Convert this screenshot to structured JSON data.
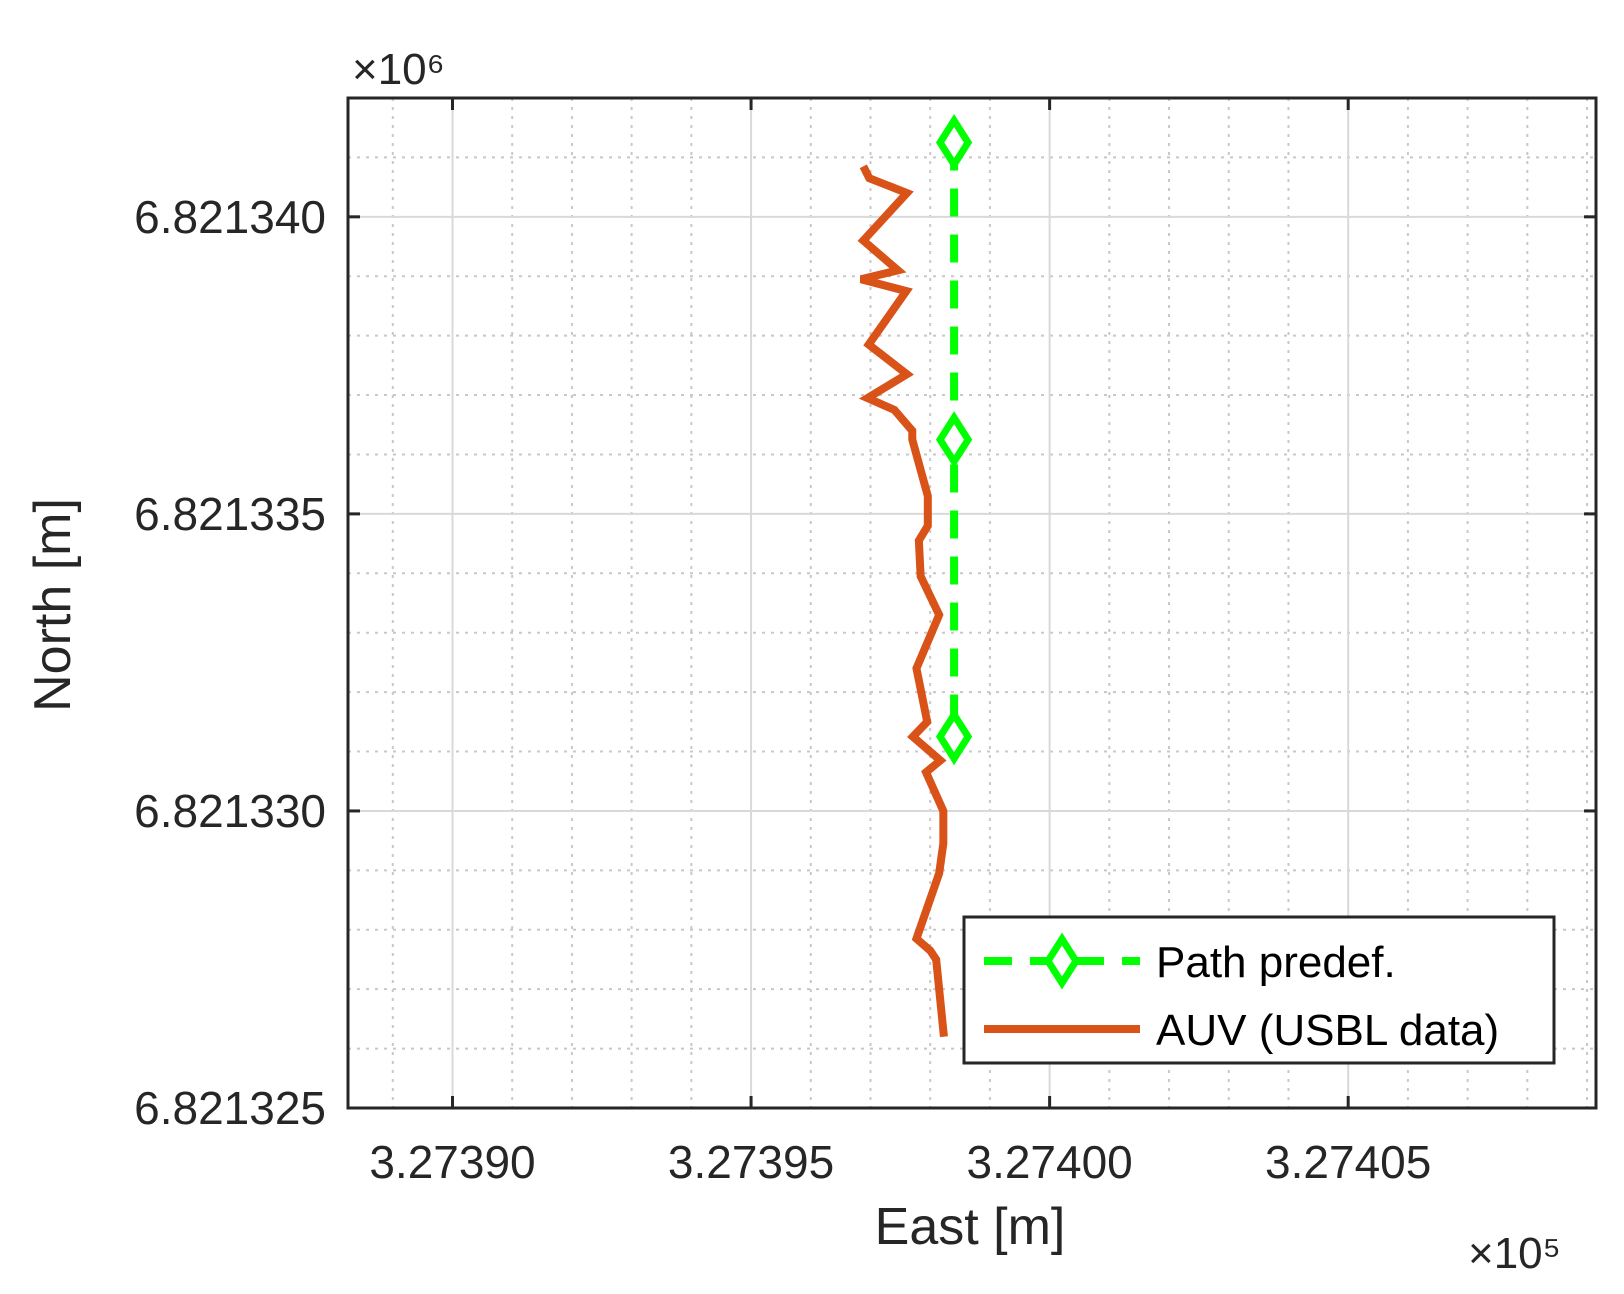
{
  "chart_data": {
    "type": "line",
    "xlabel": "East [m]",
    "ylabel": "North [m]",
    "x_multiplier": "×10⁵",
    "y_multiplier": "×10⁶",
    "xlim": [
      327388.25,
      327409.15
    ],
    "ylim": [
      6821325.0,
      6821342.0
    ],
    "x_ticks": [
      327390,
      327395,
      327400,
      327405
    ],
    "x_tick_labels": [
      "3.27390",
      "3.27395",
      "3.27400",
      "3.27405"
    ],
    "y_ticks": [
      6821325,
      6821330,
      6821335,
      6821340
    ],
    "y_tick_labels": [
      "6.821325",
      "6.821330",
      "6.821335",
      "6.821340"
    ],
    "x_minor_step": 1,
    "y_minor_step": 1,
    "grid": true,
    "legend_position": "bottom-right",
    "series": [
      {
        "name": "Path predef.",
        "style": "dashed",
        "marker": "diamond",
        "color": "#00FF00",
        "x": [
          327398.4,
          327398.4,
          327398.4
        ],
        "y": [
          6821341.25,
          6821336.25,
          6821331.25
        ]
      },
      {
        "name": "AUV (USBL data)",
        "style": "solid",
        "marker": "none",
        "color": "#D95319",
        "x": [
          327396.88,
          327396.98,
          327397.61,
          327396.88,
          327397.46,
          327396.84,
          327397.6,
          327396.97,
          327397.61,
          327396.95,
          327397.4,
          327397.7,
          327397.7,
          327397.96,
          327397.96,
          327397.81,
          327397.84,
          327398.15,
          327397.77,
          327397.95,
          327397.71,
          327398.17,
          327397.93,
          327398.22,
          327398.22,
          327398.15,
          327397.77,
          327398.0,
          327398.1,
          327398.23
        ],
        "y": [
          6821340.85,
          6821340.65,
          6821340.4,
          6821339.6,
          6821339.1,
          6821338.95,
          6821338.75,
          6821337.85,
          6821337.35,
          6821336.95,
          6821336.75,
          6821336.4,
          6821336.25,
          6821335.3,
          6821334.8,
          6821334.55,
          6821333.95,
          6821333.3,
          6821332.4,
          6821331.5,
          6821331.25,
          6821330.85,
          6821330.65,
          6821330.0,
          6821329.45,
          6821328.95,
          6821327.85,
          6821327.65,
          6821327.5,
          6821326.2
        ]
      }
    ]
  }
}
